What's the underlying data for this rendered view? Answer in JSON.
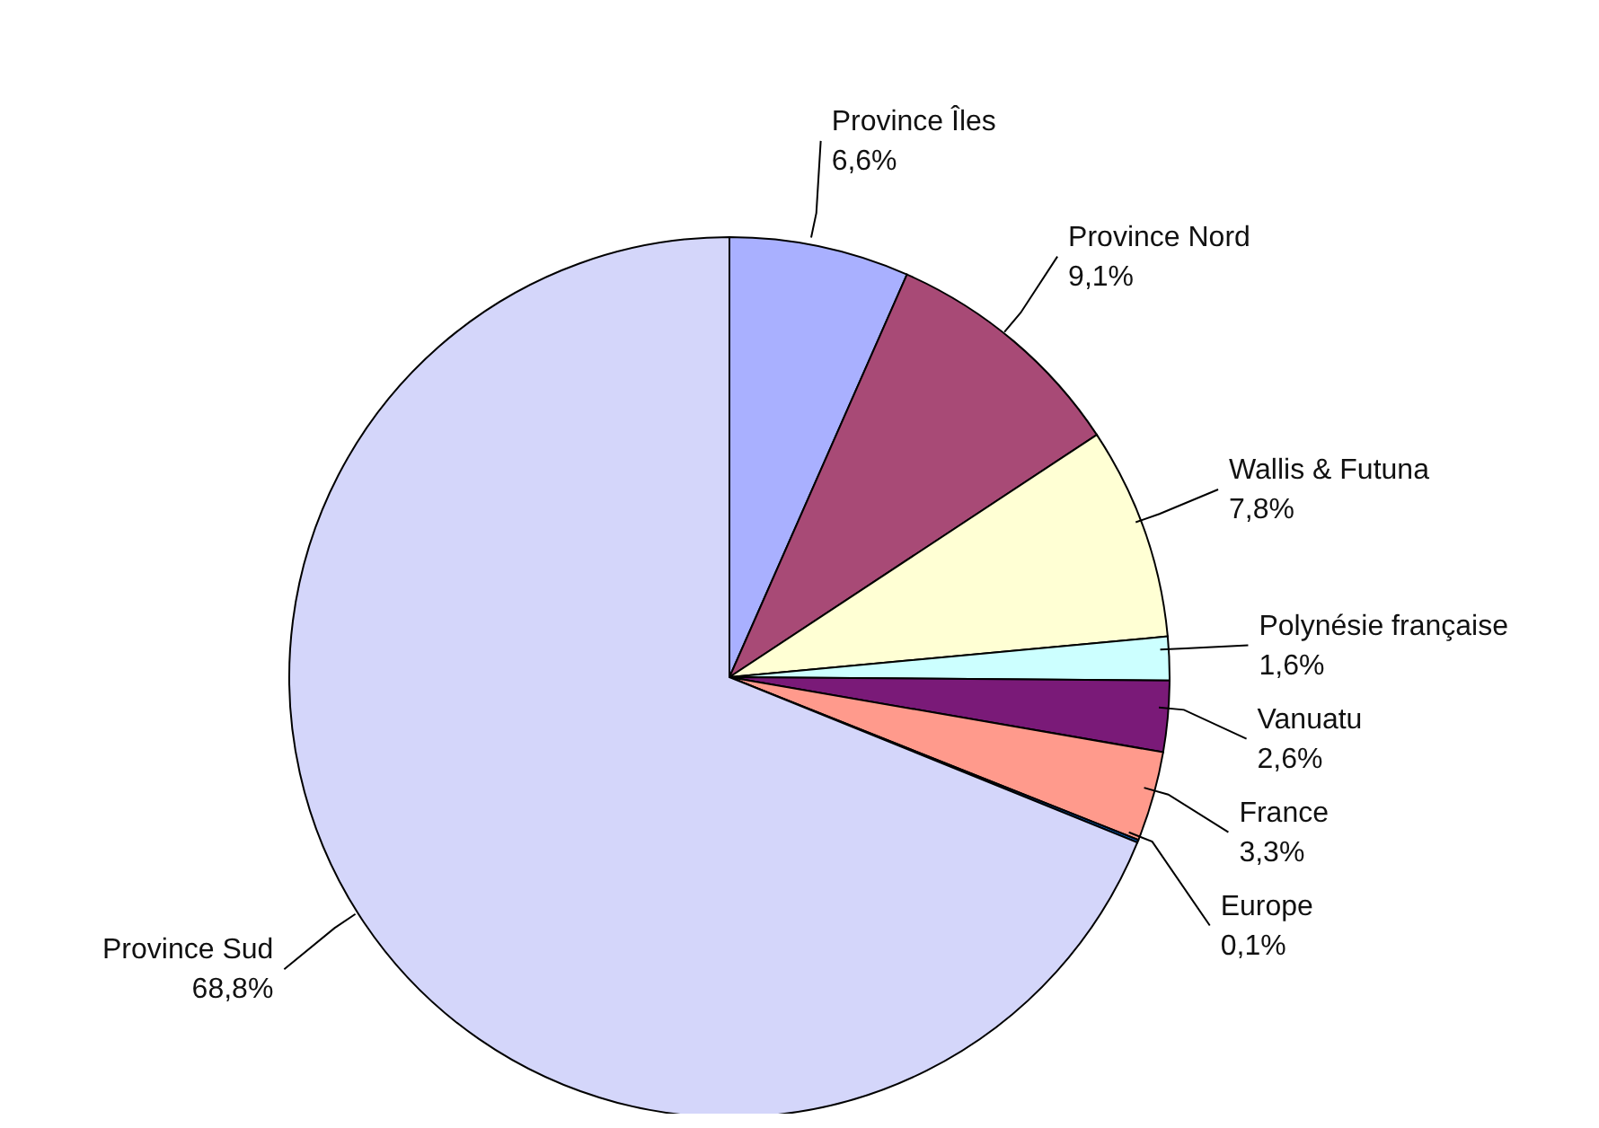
{
  "chart_data": {
    "type": "pie",
    "categories": [
      "Province Îles",
      "Province Nord",
      "Wallis & Futuna",
      "Polynésie française",
      "Vanuatu",
      "France",
      "Europe",
      "Province Sud"
    ],
    "values": [
      6.6,
      9.1,
      7.8,
      1.6,
      2.6,
      3.3,
      0.1,
      68.8
    ],
    "value_labels": [
      "6,6%",
      "9,1%",
      "7,8%",
      "1,6%",
      "2,6%",
      "3,3%",
      "0,1%",
      "68,8%"
    ],
    "colors": [
      "#a9b0ff",
      "#a84a76",
      "#ffffd4",
      "#ccffff",
      "#7a1a78",
      "#ff9a8c",
      "#0066cc",
      "#d4d6fa"
    ],
    "legend": false
  }
}
